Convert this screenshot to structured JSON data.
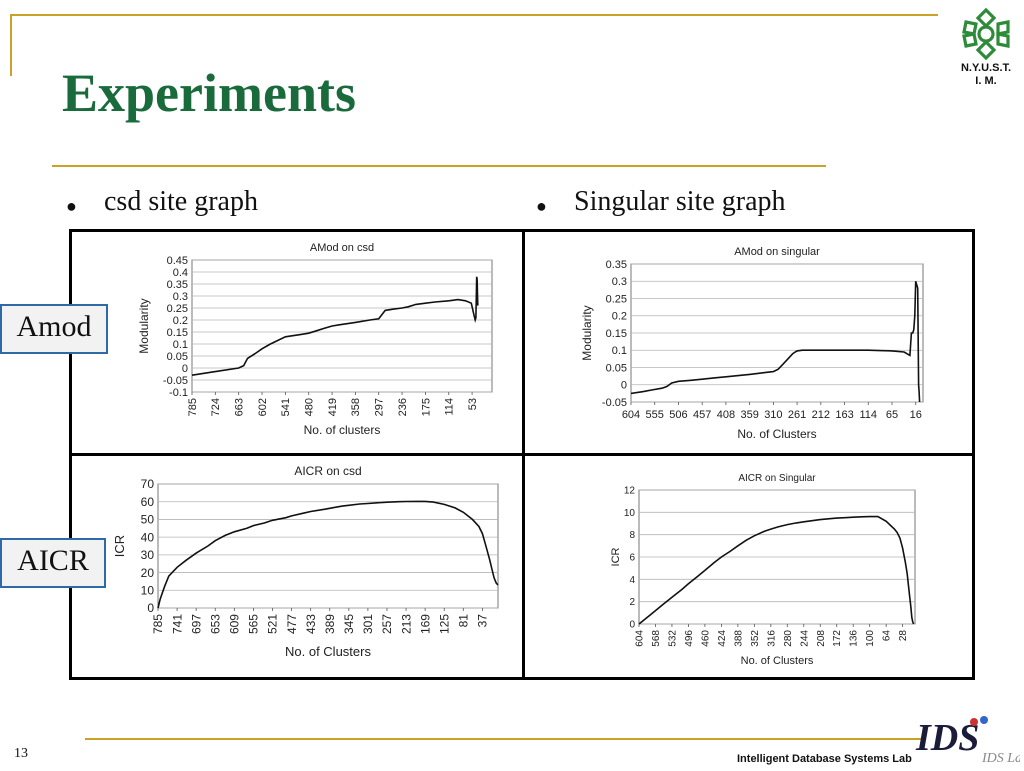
{
  "slide": {
    "title": "Experiments",
    "page_number": "13",
    "footer": "Intelligent Database Systems Lab",
    "logo_text_line1": "N.Y.U.S.T.",
    "logo_text_line2": "I. M.",
    "ids_logo_text": "IDS Lab",
    "bullets": [
      "csd site graph",
      "Singular site graph"
    ],
    "row_labels": [
      "Amod",
      "AICR"
    ],
    "colors": {
      "title": "#1a6b3c",
      "accent_line": "#c9a227",
      "logo_green": "#2e8b3a",
      "label_border": "#2e6aa8"
    }
  },
  "chart_data": [
    {
      "type": "line",
      "title": "AMod on csd",
      "xlabel": "No. of clusters",
      "ylabel": "Modularity",
      "x_ticks": [
        "785",
        "724",
        "663",
        "602",
        "541",
        "480",
        "419",
        "358",
        "297",
        "236",
        "175",
        "114",
        "53"
      ],
      "x_range": [
        785,
        1
      ],
      "ylim": [
        -0.1,
        0.45
      ],
      "y_ticks": [
        "0.45",
        "0.4",
        "0.35",
        "0.3",
        "0.25",
        "0.2",
        "0.15",
        "0.1",
        "0.05",
        "0",
        "-0.05",
        "-0.1"
      ],
      "grid": true,
      "series": [
        {
          "x": [
            785,
            724,
            663,
            650,
            640,
            620,
            602,
            580,
            541,
            500,
            480,
            460,
            440,
            419,
            400,
            358,
            320,
            297,
            280,
            260,
            236,
            220,
            200,
            175,
            150,
            114,
            90,
            70,
            55,
            48,
            45,
            43,
            41,
            40,
            38
          ],
          "y": [
            -0.03,
            -0.015,
            0.0,
            0.01,
            0.04,
            0.06,
            0.08,
            0.1,
            0.13,
            0.14,
            0.145,
            0.155,
            0.165,
            0.175,
            0.18,
            0.19,
            0.2,
            0.205,
            0.24,
            0.245,
            0.25,
            0.255,
            0.265,
            0.27,
            0.275,
            0.28,
            0.285,
            0.28,
            0.27,
            0.22,
            0.2,
            0.21,
            0.38,
            0.37,
            0.26
          ]
        }
      ]
    },
    {
      "type": "line",
      "title": "AMod on singular",
      "xlabel": "No. of Clusters",
      "ylabel": "Modularity",
      "x_ticks": [
        "604",
        "555",
        "506",
        "457",
        "408",
        "359",
        "310",
        "261",
        "212",
        "163",
        "114",
        "65",
        "16"
      ],
      "x_range": [
        604,
        1
      ],
      "ylim": [
        -0.05,
        0.35
      ],
      "y_ticks": [
        "0.35",
        "0.3",
        "0.25",
        "0.2",
        "0.15",
        "0.1",
        "0.05",
        "0",
        "-0.05"
      ],
      "grid": true,
      "series": [
        {
          "x": [
            604,
            580,
            560,
            540,
            530,
            520,
            506,
            480,
            457,
            430,
            408,
            380,
            359,
            330,
            310,
            300,
            290,
            280,
            270,
            265,
            261,
            250,
            230,
            212,
            190,
            163,
            130,
            114,
            90,
            65,
            40,
            28,
            25,
            22,
            20,
            18,
            16,
            14,
            12,
            10,
            9,
            8
          ],
          "y": [
            -0.025,
            -0.02,
            -0.015,
            -0.01,
            -0.005,
            0.005,
            0.01,
            0.013,
            0.016,
            0.02,
            0.023,
            0.027,
            0.03,
            0.035,
            0.038,
            0.045,
            0.06,
            0.075,
            0.09,
            0.095,
            0.098,
            0.1,
            0.1,
            0.1,
            0.1,
            0.1,
            0.1,
            0.1,
            0.099,
            0.098,
            0.095,
            0.085,
            0.15,
            0.15,
            0.16,
            0.2,
            0.3,
            0.29,
            0.28,
            0.0,
            -0.02,
            -0.05
          ]
        }
      ]
    },
    {
      "type": "line",
      "title": "AICR on csd",
      "xlabel": "No. of Clusters",
      "ylabel": "ICR",
      "x_ticks": [
        "785",
        "741",
        "697",
        "653",
        "609",
        "565",
        "521",
        "477",
        "433",
        "389",
        "345",
        "301",
        "257",
        "213",
        "169",
        "125",
        "81",
        "37"
      ],
      "x_range": [
        785,
        1
      ],
      "ylim": [
        0,
        70
      ],
      "y_ticks": [
        "70",
        "60",
        "50",
        "40",
        "30",
        "20",
        "10",
        "0"
      ],
      "grid": true,
      "series": [
        {
          "x": [
            785,
            780,
            770,
            760,
            741,
            720,
            697,
            670,
            653,
            630,
            609,
            580,
            565,
            540,
            521,
            490,
            477,
            450,
            433,
            400,
            389,
            360,
            345,
            320,
            301,
            280,
            257,
            230,
            213,
            190,
            169,
            150,
            125,
            100,
            81,
            60,
            45,
            37,
            30,
            20,
            15,
            10,
            5,
            1
          ],
          "y": [
            0,
            5,
            12,
            18,
            23,
            27,
            31,
            35,
            38,
            41,
            43,
            45,
            46.5,
            48,
            49.5,
            51,
            52,
            53.5,
            54.5,
            55.8,
            56.3,
            57.5,
            58,
            58.7,
            59,
            59.4,
            59.7,
            60,
            60.1,
            60.2,
            60.2,
            59.8,
            58.5,
            56.5,
            54,
            50,
            46,
            42,
            36,
            27,
            22,
            17,
            14,
            13
          ]
        }
      ]
    },
    {
      "type": "line",
      "title": "AICR on Singular",
      "xlabel": "No. of Clusters",
      "ylabel": "ICR",
      "x_ticks": [
        "604",
        "568",
        "532",
        "496",
        "460",
        "424",
        "388",
        "352",
        "316",
        "280",
        "244",
        "208",
        "172",
        "136",
        "100",
        "64",
        "28"
      ],
      "x_range": [
        604,
        1
      ],
      "ylim": [
        0,
        12
      ],
      "y_ticks": [
        "12",
        "10",
        "8",
        "6",
        "4",
        "2",
        "0"
      ],
      "grid": true,
      "series": [
        {
          "x": [
            604,
            580,
            568,
            550,
            532,
            510,
            496,
            478,
            460,
            440,
            424,
            405,
            388,
            370,
            352,
            330,
            316,
            300,
            280,
            260,
            244,
            226,
            208,
            190,
            172,
            154,
            136,
            118,
            100,
            82,
            64,
            46,
            40,
            34,
            28,
            22,
            18,
            14,
            10,
            8,
            6,
            4
          ],
          "y": [
            0,
            0.8,
            1.2,
            1.8,
            2.4,
            3.1,
            3.6,
            4.2,
            4.8,
            5.5,
            6.0,
            6.5,
            7.0,
            7.5,
            7.9,
            8.3,
            8.5,
            8.7,
            8.9,
            9.05,
            9.15,
            9.25,
            9.35,
            9.42,
            9.48,
            9.52,
            9.56,
            9.6,
            9.62,
            9.62,
            9.2,
            8.5,
            8.2,
            7.7,
            6.8,
            5.5,
            4.5,
            3,
            1.5,
            0.6,
            0.2,
            0
          ]
        }
      ]
    }
  ]
}
